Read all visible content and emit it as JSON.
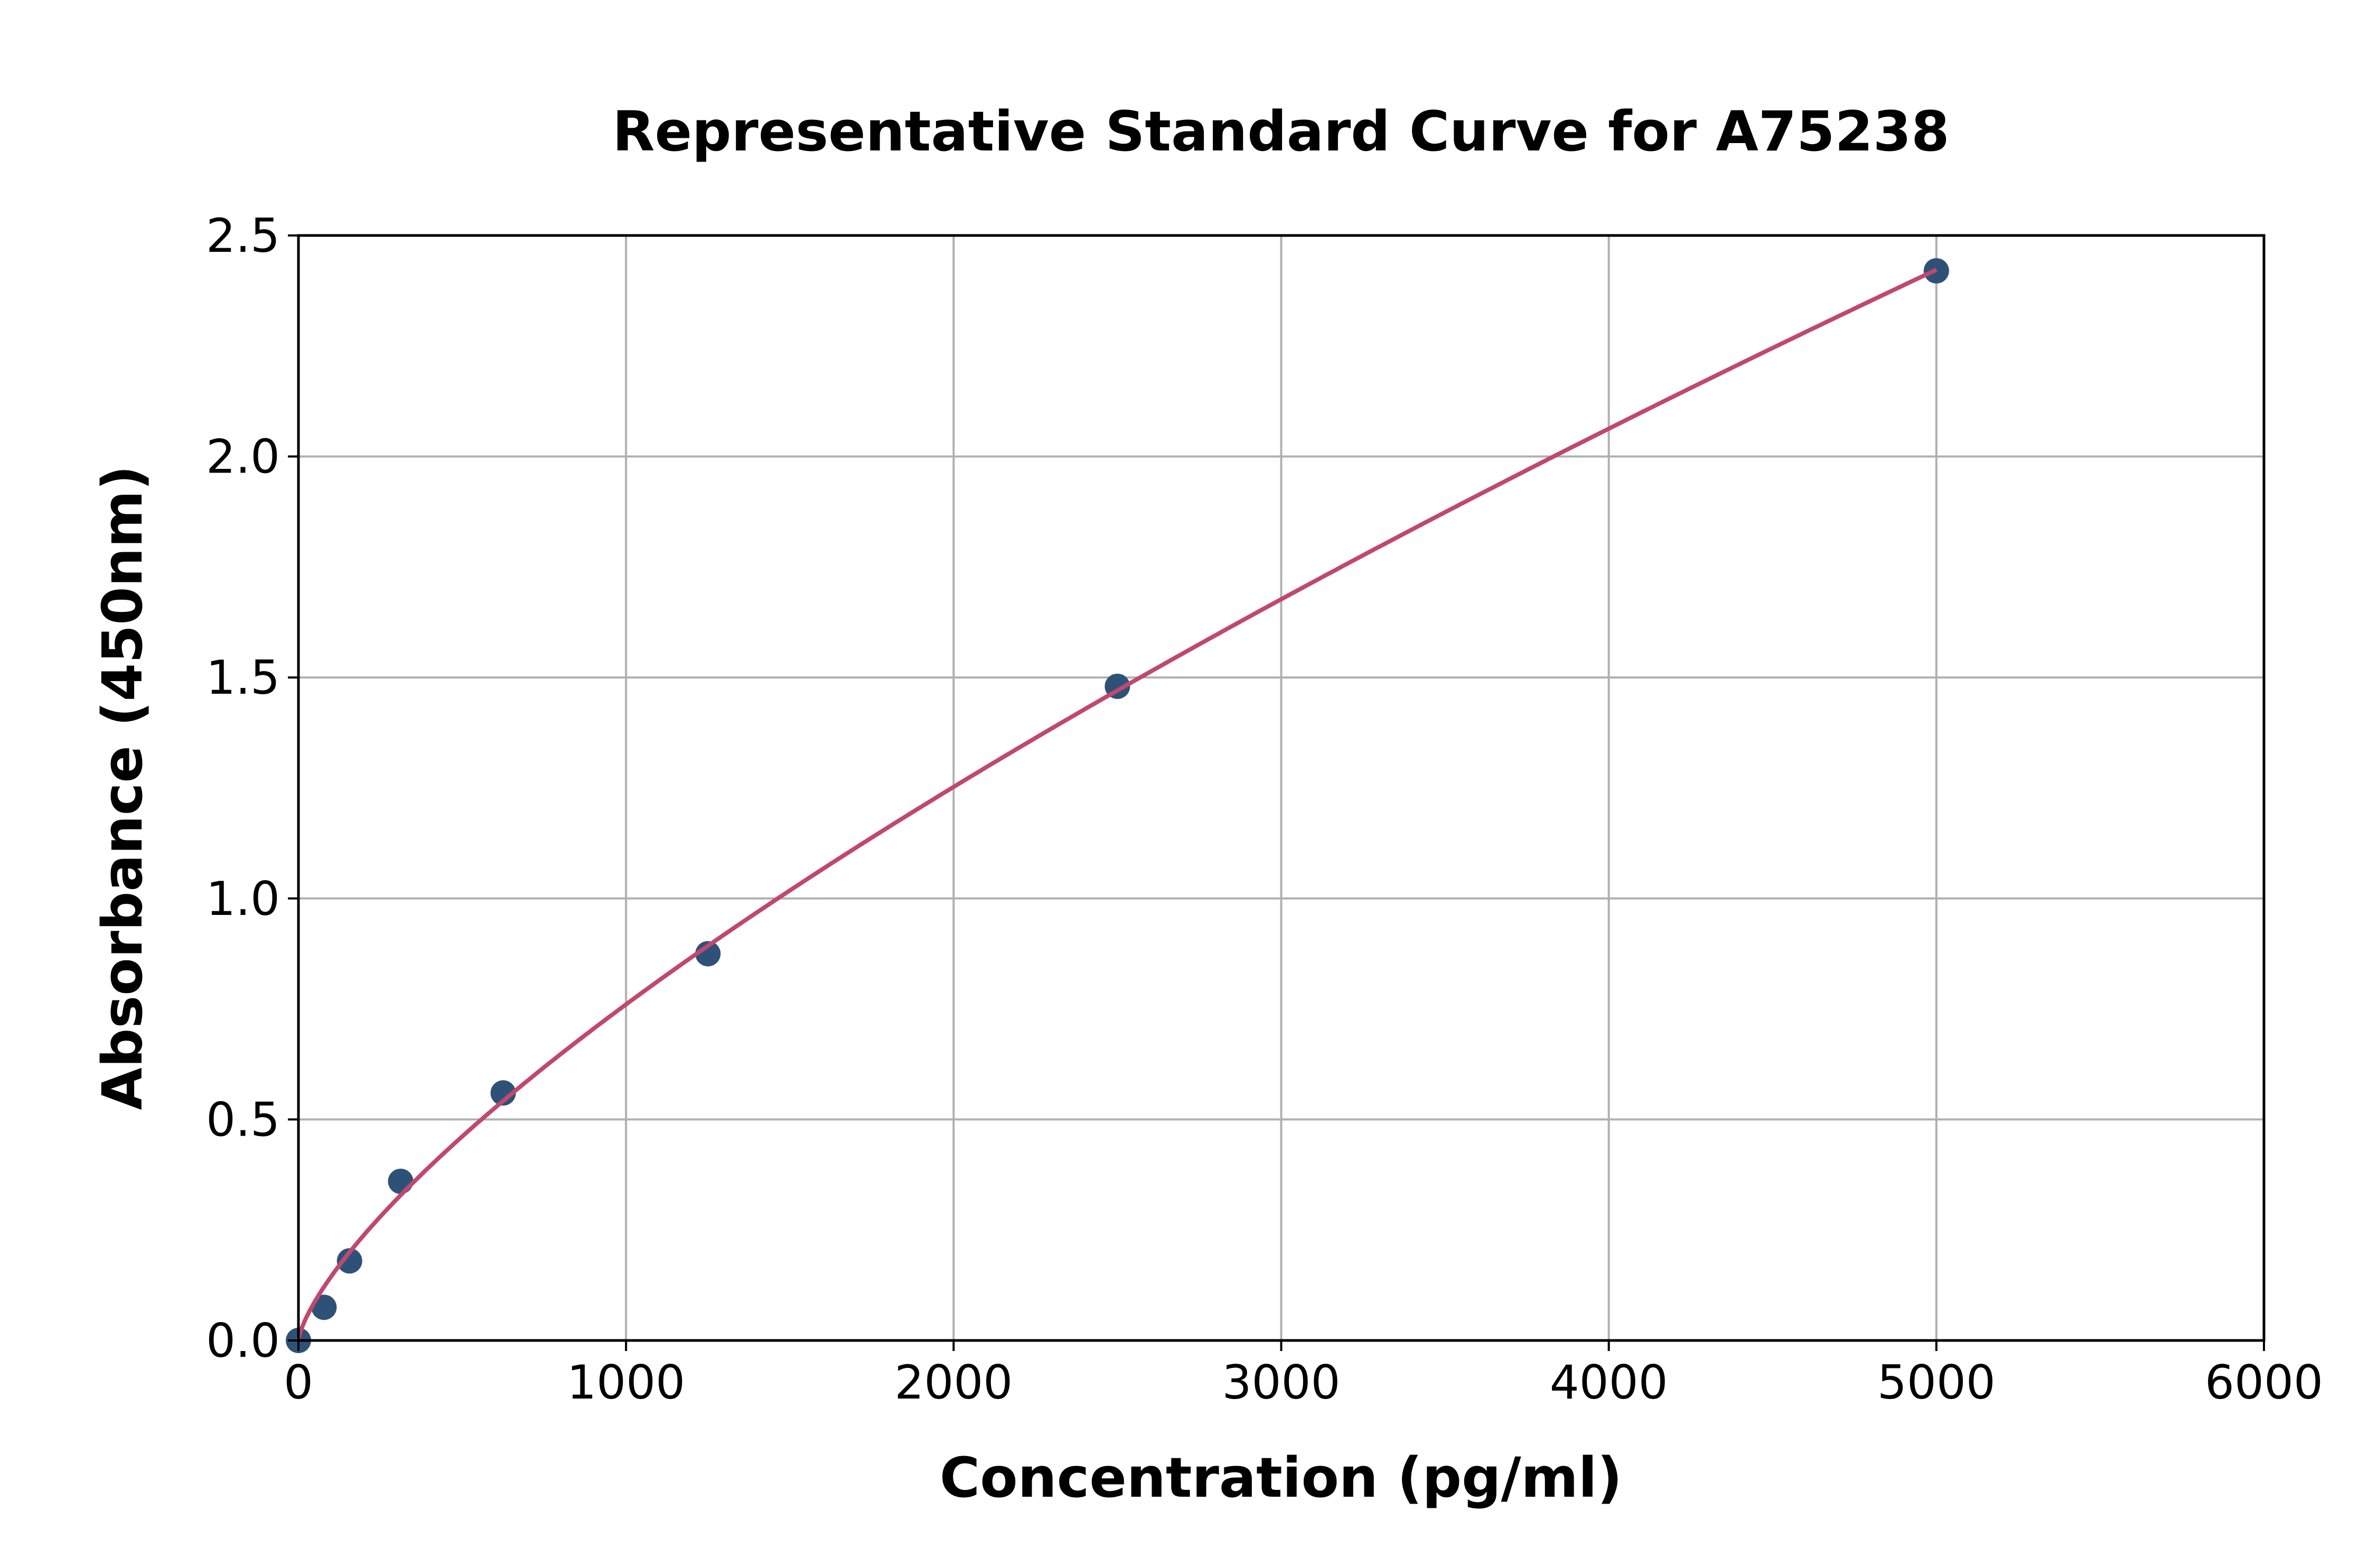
{
  "chart_data": {
    "type": "scatter",
    "title": "Representative Standard Curve for A75238",
    "xlabel": "Concentration (pg/ml)",
    "ylabel": "Absorbance (450nm)",
    "xlim": [
      0,
      6000
    ],
    "ylim": [
      0,
      2.5
    ],
    "xticks": [
      "0",
      "1000",
      "2000",
      "3000",
      "4000",
      "5000",
      "6000"
    ],
    "yticks": [
      "0.0",
      "0.5",
      "1.0",
      "1.5",
      "2.0",
      "2.5"
    ],
    "grid": true,
    "points": {
      "x": [
        0,
        78,
        156,
        312,
        625,
        1250,
        2500,
        5000
      ],
      "y": [
        0.0,
        0.075,
        0.18,
        0.36,
        0.56,
        0.875,
        1.48,
        2.42
      ]
    },
    "fit_curve": {
      "type": "line",
      "x_range": [
        0,
        5000
      ]
    },
    "colors": {
      "points": "#2e5277",
      "curve": "#c0486e",
      "grid": "#b0b0b0"
    }
  }
}
